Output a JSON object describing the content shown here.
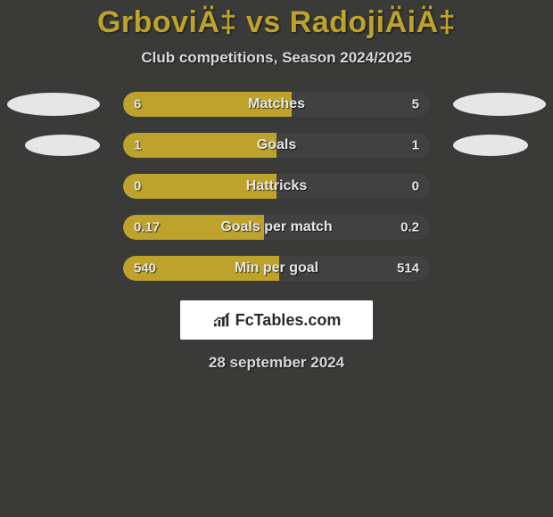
{
  "title": "GrboviÄ‡ vs RadojiÄiÄ‡",
  "subtitle": "Club competitions, Season 2024/2025",
  "date": "28 september 2024",
  "brand": "FcTables.com",
  "colors": {
    "left": "#bda22c",
    "right": "#414141",
    "bg": "#3a3a39",
    "ellipse": "#e6e6e6",
    "title": "#bda22c",
    "text": "#e6e6e6"
  },
  "label_fontsize": 16,
  "value_fontsize": 15,
  "title_fontsize": 34,
  "rows": [
    {
      "label": "Matches",
      "left": "6",
      "right": "5",
      "left_pct": 55,
      "show_ellipse": true,
      "small_ellipse": false
    },
    {
      "label": "Goals",
      "left": "1",
      "right": "1",
      "left_pct": 50,
      "show_ellipse": true,
      "small_ellipse": true
    },
    {
      "label": "Hattricks",
      "left": "0",
      "right": "0",
      "left_pct": 50,
      "show_ellipse": false,
      "small_ellipse": false
    },
    {
      "label": "Goals per match",
      "left": "0.17",
      "right": "0.2",
      "left_pct": 46,
      "show_ellipse": false,
      "small_ellipse": false
    },
    {
      "label": "Min per goal",
      "left": "540",
      "right": "514",
      "left_pct": 51,
      "show_ellipse": false,
      "small_ellipse": false
    }
  ]
}
